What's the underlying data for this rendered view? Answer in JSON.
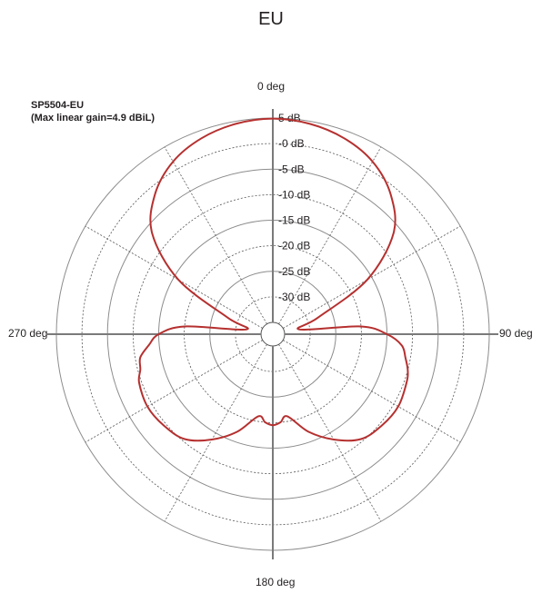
{
  "chart_data": {
    "type": "polar",
    "title": "EU",
    "legend": {
      "series_name": "SP5504-EU",
      "note": "(Max linear gain=4.9 dBiL)"
    },
    "angle_labels": [
      "0 deg",
      "90 deg",
      "180 deg",
      "270 deg"
    ],
    "radial_ticks": [
      5,
      0,
      -5,
      -10,
      -15,
      -20,
      -25,
      -30
    ],
    "radial_tick_labels": [
      "5 dB",
      "-0 dB",
      "-5 dB",
      "-10 dB",
      "-15 dB",
      "-20 dB",
      "-25 dB",
      "-30 dB"
    ],
    "r_range": [
      -35,
      5
    ],
    "grid": true,
    "series": [
      {
        "name": "SP5504-EU",
        "color": "#b5302f",
        "angles_deg": [
          0,
          10,
          20,
          30,
          40,
          50,
          60,
          70,
          80,
          85,
          90,
          95,
          100,
          105,
          110,
          120,
          130,
          140,
          150,
          160,
          170,
          175,
          180,
          185,
          190,
          200,
          210,
          220,
          230,
          240,
          250,
          255,
          260,
          265,
          270,
          275,
          280,
          290,
          300,
          310,
          320,
          330,
          340,
          350
        ],
        "gain_db": [
          4.9,
          4.5,
          3.5,
          1.7,
          -1.5,
          -6.5,
          -16,
          -28,
          -32,
          -20,
          -15,
          -12,
          -11,
          -10,
          -9.5,
          -9,
          -9.5,
          -10.5,
          -13.5,
          -17,
          -21,
          -20,
          -19.5,
          -20,
          -21,
          -17,
          -13.5,
          -10.5,
          -9.5,
          -9,
          -9.5,
          -10.5,
          -11,
          -13,
          -15,
          -20,
          -32,
          -28,
          -16,
          -6.5,
          -1.5,
          1.7,
          3.5,
          4.5
        ]
      }
    ]
  }
}
